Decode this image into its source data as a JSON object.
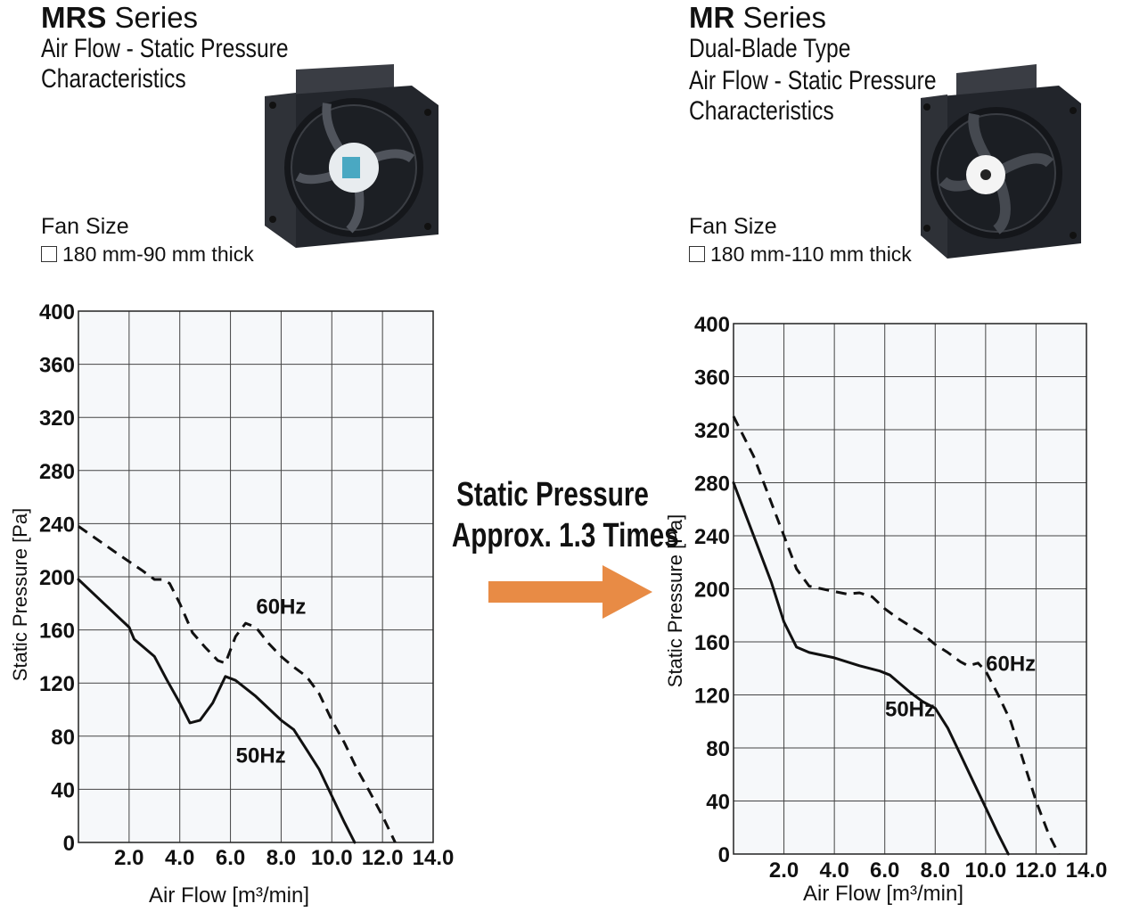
{
  "left": {
    "title_bold": "MRS",
    "title_rest": " Series",
    "subtitle_lines": [
      "Air Flow - Static Pressure",
      "Characteristics"
    ],
    "fan_size_label": "Fan Size",
    "fan_size_value": "180 mm-90 mm thick"
  },
  "right": {
    "title_bold": "MR",
    "title_rest": " Series",
    "subtitle_lines": [
      "Dual-Blade Type",
      "Air Flow - Static Pressure",
      "Characteristics"
    ],
    "fan_size_label": "Fan Size",
    "fan_size_value": "180 mm-110 mm thick"
  },
  "middle": {
    "line1": "Static Pressure",
    "line2": "Approx. 1.3 Times",
    "arrow_color": "#E88B45"
  },
  "chart_data": [
    {
      "type": "line",
      "xlabel": "Air Flow [m³/min]",
      "ylabel": "Static Pressure [Pa]",
      "xlim": [
        0,
        14
      ],
      "ylim": [
        0,
        400
      ],
      "xticks": [
        "2.0",
        "4.0",
        "6.0",
        "8.0",
        "10.0",
        "12.0",
        "14.0"
      ],
      "yticks": [
        "0",
        "40",
        "80",
        "120",
        "160",
        "200",
        "240",
        "280",
        "320",
        "360",
        "400"
      ],
      "grid": true,
      "series": [
        {
          "name": "60Hz",
          "style": "dashed",
          "label_at": [
            8.0,
            172
          ],
          "points": [
            [
              0,
              238
            ],
            [
              1.5,
              218
            ],
            [
              2.5,
              205
            ],
            [
              3.0,
              198
            ],
            [
              3.3,
              198
            ],
            [
              3.6,
              195
            ],
            [
              4.0,
              180
            ],
            [
              4.5,
              158
            ],
            [
              5.0,
              147
            ],
            [
              5.5,
              137
            ],
            [
              5.8,
              135
            ],
            [
              6.2,
              155
            ],
            [
              6.6,
              165
            ],
            [
              7.0,
              162
            ],
            [
              7.5,
              150
            ],
            [
              8.0,
              140
            ],
            [
              8.5,
              132
            ],
            [
              9.0,
              125
            ],
            [
              9.5,
              112
            ],
            [
              10.0,
              92
            ],
            [
              10.5,
              75
            ],
            [
              11.0,
              55
            ],
            [
              11.5,
              38
            ],
            [
              12.0,
              20
            ],
            [
              12.5,
              0
            ]
          ]
        },
        {
          "name": "50Hz",
          "style": "solid",
          "label_at": [
            7.2,
            60
          ],
          "points": [
            [
              0,
              198
            ],
            [
              1.0,
              180
            ],
            [
              2.0,
              162
            ],
            [
              2.2,
              153
            ],
            [
              3.0,
              140
            ],
            [
              3.5,
              122
            ],
            [
              4.0,
              105
            ],
            [
              4.4,
              90
            ],
            [
              4.8,
              92
            ],
            [
              5.3,
              105
            ],
            [
              5.8,
              125
            ],
            [
              6.2,
              122
            ],
            [
              7.0,
              110
            ],
            [
              8.0,
              92
            ],
            [
              8.5,
              85
            ],
            [
              9.0,
              70
            ],
            [
              9.5,
              55
            ],
            [
              10.0,
              35
            ],
            [
              10.5,
              15
            ],
            [
              10.9,
              0
            ]
          ]
        }
      ]
    },
    {
      "type": "line",
      "xlabel": "Air Flow [m³/min]",
      "ylabel": "Static Pressure [Pa]",
      "xlim": [
        0,
        14
      ],
      "ylim": [
        0,
        400
      ],
      "xticks": [
        "2.0",
        "4.0",
        "6.0",
        "8.0",
        "10.0",
        "12.0",
        "14.0"
      ],
      "yticks": [
        "0",
        "40",
        "80",
        "120",
        "160",
        "200",
        "240",
        "280",
        "320",
        "360",
        "400"
      ],
      "grid": true,
      "series": [
        {
          "name": "60Hz",
          "style": "dashed",
          "label_at": [
            11.0,
            138
          ],
          "points": [
            [
              0,
              330
            ],
            [
              0.8,
              300
            ],
            [
              1.5,
              265
            ],
            [
              2.0,
              240
            ],
            [
              2.5,
              215
            ],
            [
              3.0,
              202
            ],
            [
              3.5,
              200
            ],
            [
              4.0,
              198
            ],
            [
              4.5,
              196
            ],
            [
              5.0,
              197
            ],
            [
              5.5,
              194
            ],
            [
              6.0,
              185
            ],
            [
              6.5,
              178
            ],
            [
              7.0,
              172
            ],
            [
              7.5,
              166
            ],
            [
              8.0,
              158
            ],
            [
              8.5,
              152
            ],
            [
              9.0,
              145
            ],
            [
              9.3,
              142
            ],
            [
              9.7,
              144
            ],
            [
              10.0,
              138
            ],
            [
              10.5,
              120
            ],
            [
              11.0,
              100
            ],
            [
              11.5,
              70
            ],
            [
              12.0,
              40
            ],
            [
              12.5,
              15
            ],
            [
              12.9,
              0
            ]
          ]
        },
        {
          "name": "50Hz",
          "style": "solid",
          "label_at": [
            7.0,
            104
          ],
          "points": [
            [
              0,
              280
            ],
            [
              0.5,
              255
            ],
            [
              1.0,
              230
            ],
            [
              1.5,
              205
            ],
            [
              2.0,
              175
            ],
            [
              2.5,
              156
            ],
            [
              3.0,
              152
            ],
            [
              4.0,
              148
            ],
            [
              5.0,
              142
            ],
            [
              5.8,
              138
            ],
            [
              6.2,
              135
            ],
            [
              7.0,
              122
            ],
            [
              7.5,
              115
            ],
            [
              8.0,
              110
            ],
            [
              8.5,
              95
            ],
            [
              9.0,
              75
            ],
            [
              9.5,
              55
            ],
            [
              10.0,
              35
            ],
            [
              10.5,
              15
            ],
            [
              10.9,
              0
            ]
          ]
        }
      ]
    }
  ]
}
